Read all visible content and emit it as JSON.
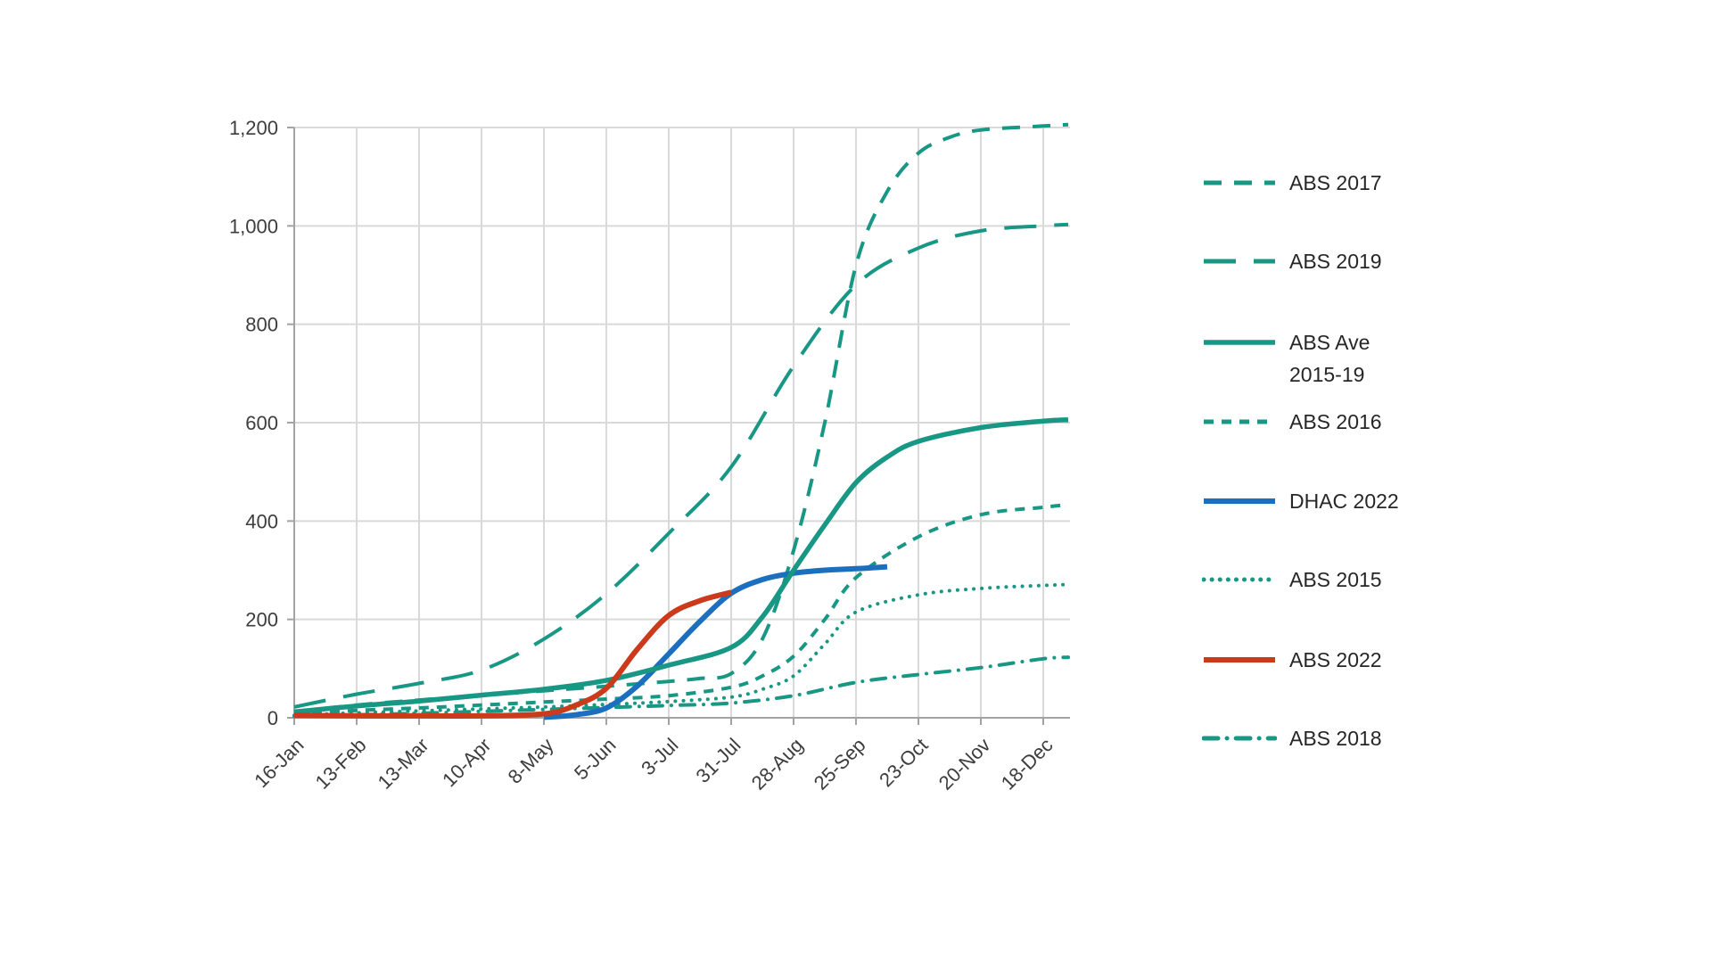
{
  "figure": {
    "background_color": "#ffffff"
  },
  "chart_data": {
    "type": "line",
    "title": "",
    "xlabel": "",
    "ylabel": "",
    "grid": true,
    "legend_position": "right",
    "categories": [
      "16-Jan",
      "13-Feb",
      "13-Mar",
      "10-Apr",
      "8-May",
      "5-Jun",
      "3-Jul",
      "31-Jul",
      "28-Aug",
      "25-Sep",
      "23-Oct",
      "20-Nov",
      "18-Dec"
    ],
    "y_axis": {
      "min": 0,
      "max": 1200,
      "tick_interval": 200,
      "tick_labels": [
        "0",
        "200",
        "400",
        "600",
        "800",
        "1,000",
        "1,200"
      ]
    },
    "series": [
      {
        "name": "ABS 2017",
        "legend_label": "ABS 2017",
        "color": "#189784",
        "line_style": "dashed-medium",
        "width": 4,
        "points": [
          [
            0,
            12
          ],
          [
            1,
            26
          ],
          [
            2,
            36
          ],
          [
            3,
            46
          ],
          [
            4,
            55
          ],
          [
            5,
            64
          ],
          [
            6,
            74
          ],
          [
            6.5,
            80
          ],
          [
            7,
            90
          ],
          [
            7.5,
            160
          ],
          [
            8,
            340
          ],
          [
            8.5,
            600
          ],
          [
            9,
            920
          ],
          [
            9.5,
            1070
          ],
          [
            10,
            1148
          ],
          [
            10.5,
            1180
          ],
          [
            11,
            1195
          ],
          [
            12,
            1203
          ],
          [
            12.4,
            1206
          ]
        ]
      },
      {
        "name": "ABS 2019",
        "legend_label": "ABS 2019",
        "color": "#189784",
        "line_style": "dashed-long",
        "width": 4,
        "points": [
          [
            0,
            22
          ],
          [
            1,
            48
          ],
          [
            2,
            70
          ],
          [
            3,
            97
          ],
          [
            4,
            160
          ],
          [
            5,
            252
          ],
          [
            6,
            375
          ],
          [
            7,
            510
          ],
          [
            8,
            715
          ],
          [
            9,
            880
          ],
          [
            10,
            955
          ],
          [
            11,
            990
          ],
          [
            12,
            1000
          ],
          [
            12.4,
            1003
          ]
        ]
      },
      {
        "name": "ABS Ave 2015-19",
        "legend_label": "ABS Ave\n2015-19",
        "color": "#189784",
        "line_style": "solid",
        "width": 5.5,
        "points": [
          [
            0,
            12
          ],
          [
            1,
            24
          ],
          [
            2,
            34
          ],
          [
            3,
            46
          ],
          [
            4,
            58
          ],
          [
            5,
            76
          ],
          [
            6,
            107
          ],
          [
            7,
            143
          ],
          [
            7.5,
            205
          ],
          [
            8,
            300
          ],
          [
            8.5,
            392
          ],
          [
            9,
            478
          ],
          [
            9.5,
            530
          ],
          [
            10,
            562
          ],
          [
            11,
            590
          ],
          [
            12,
            603
          ],
          [
            12.4,
            606
          ]
        ]
      },
      {
        "name": "ABS 2016",
        "legend_label": "ABS 2016",
        "color": "#189784",
        "line_style": "dashed-short",
        "width": 4,
        "points": [
          [
            0,
            8
          ],
          [
            1,
            15
          ],
          [
            2,
            20
          ],
          [
            3,
            26
          ],
          [
            4,
            32
          ],
          [
            5,
            38
          ],
          [
            6,
            45
          ],
          [
            7,
            62
          ],
          [
            7.5,
            85
          ],
          [
            8,
            125
          ],
          [
            8.5,
            200
          ],
          [
            9,
            285
          ],
          [
            10,
            368
          ],
          [
            11,
            413
          ],
          [
            12,
            428
          ],
          [
            12.4,
            433
          ]
        ]
      },
      {
        "name": "DHAC 2022",
        "legend_label": "DHAC 2022",
        "color": "#1b6fbe",
        "line_style": "solid",
        "width": 6,
        "points": [
          [
            4,
            1
          ],
          [
            4.5,
            6
          ],
          [
            5,
            20
          ],
          [
            5.5,
            65
          ],
          [
            6,
            130
          ],
          [
            6.5,
            196
          ],
          [
            7,
            253
          ],
          [
            7.5,
            281
          ],
          [
            8,
            294
          ],
          [
            8.5,
            300
          ],
          [
            9,
            303
          ],
          [
            9.5,
            307
          ]
        ]
      },
      {
        "name": "ABS 2015",
        "legend_label": "ABS 2015",
        "color": "#189784",
        "line_style": "dotted",
        "width": 4,
        "points": [
          [
            0,
            5
          ],
          [
            1,
            10
          ],
          [
            2,
            14
          ],
          [
            3,
            18
          ],
          [
            4,
            22
          ],
          [
            5,
            27
          ],
          [
            6,
            33
          ],
          [
            7,
            42
          ],
          [
            7.5,
            58
          ],
          [
            8,
            85
          ],
          [
            8.5,
            150
          ],
          [
            9,
            215
          ],
          [
            10,
            250
          ],
          [
            11,
            263
          ],
          [
            12,
            269
          ],
          [
            12.4,
            271
          ]
        ]
      },
      {
        "name": "ABS 2022",
        "legend_label": "ABS 2022",
        "color": "#cb3a1b",
        "line_style": "solid",
        "width": 6,
        "points": [
          [
            0,
            5
          ],
          [
            1,
            4
          ],
          [
            2,
            4
          ],
          [
            3,
            4
          ],
          [
            4,
            8
          ],
          [
            4.5,
            25
          ],
          [
            5,
            60
          ],
          [
            5.5,
            140
          ],
          [
            6,
            208
          ],
          [
            6.5,
            238
          ],
          [
            7,
            255
          ]
        ]
      },
      {
        "name": "ABS 2018",
        "legend_label": "ABS 2018",
        "color": "#189784",
        "line_style": "dash-dot",
        "width": 4,
        "points": [
          [
            0,
            3
          ],
          [
            1,
            6
          ],
          [
            2,
            9
          ],
          [
            3,
            13
          ],
          [
            4,
            17
          ],
          [
            5,
            21
          ],
          [
            6,
            25
          ],
          [
            7,
            30
          ],
          [
            8,
            45
          ],
          [
            9,
            72
          ],
          [
            10,
            88
          ],
          [
            11,
            102
          ],
          [
            12,
            120
          ],
          [
            12.4,
            123
          ]
        ]
      }
    ]
  }
}
